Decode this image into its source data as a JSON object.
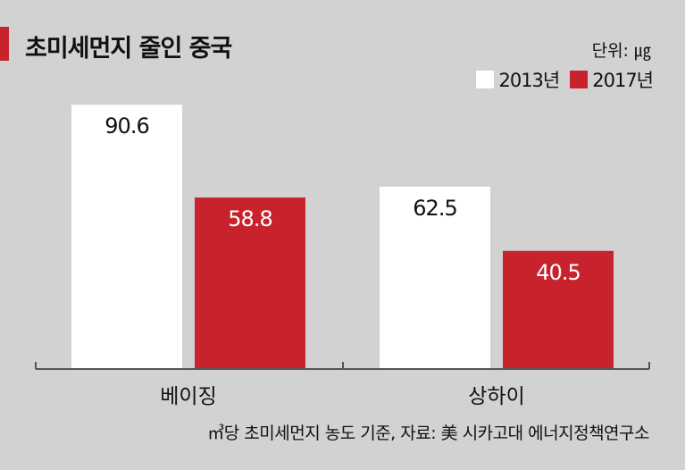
{
  "chart_data": {
    "type": "bar",
    "title": "초미세먼지 줄인 중국",
    "unit": "단위: ㎍",
    "categories": [
      "베이징",
      "상하이"
    ],
    "series": [
      {
        "name": "2013년",
        "values": [
          90.6,
          62.5
        ]
      },
      {
        "name": "2017년",
        "values": [
          58.8,
          40.5
        ]
      }
    ],
    "ylim": [
      0,
      102
    ],
    "legend_position": "top-right",
    "grid": false,
    "source": "㎥당 초미세먼지 농도 기준, 자료: 美 시카고대 에너지정책연구소"
  },
  "colors": {
    "background": "#d2d2d2",
    "accent": "#c8232c",
    "series": [
      "#ffffff",
      "#c8232c"
    ],
    "label_on_white": "#111111",
    "label_on_red": "#ffffff",
    "axis": "#555555"
  }
}
